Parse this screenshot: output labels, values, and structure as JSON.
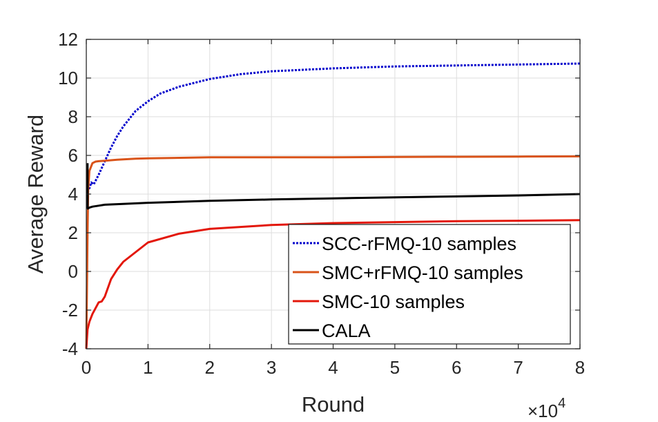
{
  "chart_data": {
    "type": "line",
    "title": "",
    "xlabel": "Round",
    "ylabel": "Average Reward",
    "x_exponent_label": "×10",
    "x_exponent": "4",
    "xlim": [
      0,
      8
    ],
    "ylim": [
      -4,
      12
    ],
    "xticks": [
      "0",
      "1",
      "2",
      "3",
      "4",
      "5",
      "6",
      "7",
      "8"
    ],
    "yticks": [
      "-4",
      "-2",
      "0",
      "2",
      "4",
      "6",
      "8",
      "10",
      "12"
    ],
    "grid": true,
    "legend_position": "bottom-right",
    "series": [
      {
        "name": "SCC-rFMQ-10 samples",
        "color": "#0000cc",
        "dash": "dotted",
        "x": [
          0.02,
          0.05,
          0.08,
          0.12,
          0.2,
          0.3,
          0.4,
          0.5,
          0.6,
          0.8,
          1.0,
          1.2,
          1.5,
          2.0,
          2.5,
          3.0,
          4.0,
          5.0,
          6.0,
          7.0,
          8.0
        ],
        "y": [
          4.5,
          4.3,
          4.6,
          4.5,
          5.0,
          5.7,
          6.4,
          7.0,
          7.5,
          8.3,
          8.8,
          9.2,
          9.55,
          9.95,
          10.2,
          10.35,
          10.5,
          10.6,
          10.65,
          10.7,
          10.75
        ]
      },
      {
        "name": "SMC+rFMQ-10 samples",
        "color": "#d95319",
        "dash": "solid",
        "x": [
          0.0,
          0.01,
          0.02,
          0.03,
          0.05,
          0.1,
          0.15,
          0.2,
          0.3,
          0.5,
          0.8,
          1.0,
          2.0,
          3.0,
          4.0,
          5.0,
          6.0,
          7.0,
          8.0
        ],
        "y": [
          -4.0,
          -1.0,
          2.0,
          4.2,
          5.2,
          5.6,
          5.68,
          5.7,
          5.72,
          5.78,
          5.83,
          5.85,
          5.9,
          5.9,
          5.9,
          5.92,
          5.93,
          5.94,
          5.95
        ]
      },
      {
        "name": "SMC-10 samples",
        "color": "#e3170a",
        "dash": "solid",
        "x": [
          0.0,
          0.02,
          0.05,
          0.1,
          0.15,
          0.2,
          0.25,
          0.3,
          0.4,
          0.5,
          0.6,
          0.8,
          1.0,
          1.5,
          2.0,
          3.0,
          4.0,
          5.0,
          6.0,
          7.0,
          8.0
        ],
        "y": [
          -4.0,
          -3.0,
          -2.6,
          -2.2,
          -1.9,
          -1.6,
          -1.55,
          -1.3,
          -0.4,
          0.1,
          0.5,
          1.0,
          1.5,
          1.95,
          2.2,
          2.4,
          2.5,
          2.55,
          2.6,
          2.62,
          2.65
        ]
      },
      {
        "name": "CALA",
        "color": "#000000",
        "dash": "solid",
        "x": [
          0.02,
          0.021,
          0.025,
          0.05,
          0.1,
          0.2,
          0.3,
          0.5,
          1.0,
          2.0,
          3.0,
          4.0,
          5.0,
          6.0,
          7.0,
          8.0
        ],
        "y": [
          5.6,
          3.3,
          3.25,
          3.3,
          3.35,
          3.4,
          3.45,
          3.48,
          3.55,
          3.65,
          3.72,
          3.78,
          3.83,
          3.88,
          3.93,
          4.0
        ]
      }
    ]
  }
}
